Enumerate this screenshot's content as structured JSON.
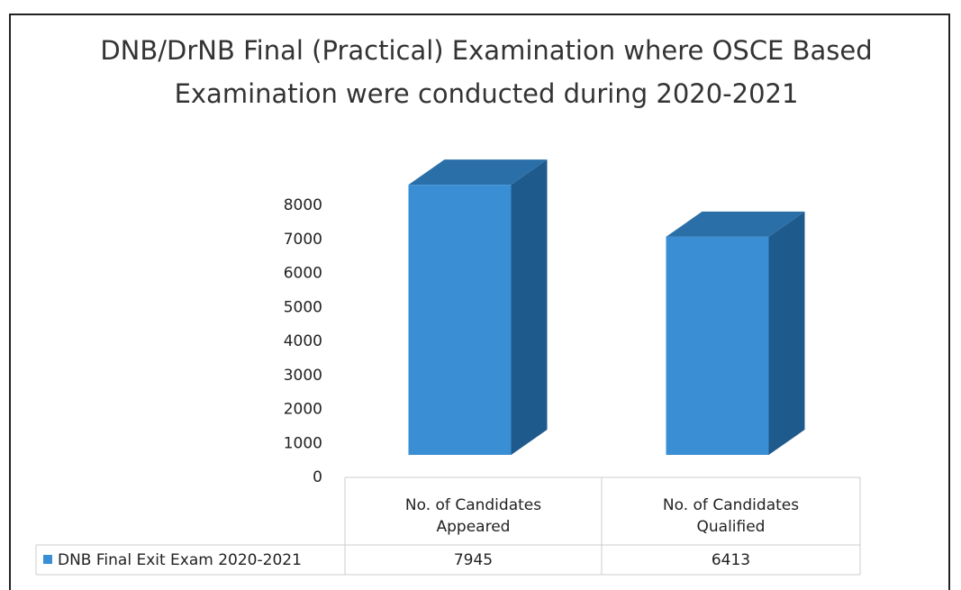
{
  "chart_data": {
    "type": "bar3d",
    "title": "DNB/DrNB Final (Practical) Examination where OSCE Based Examination were conducted during 2020-2021",
    "categories": [
      "No. of Candidates Appeared",
      "No. of Candidates Qualified"
    ],
    "series": [
      {
        "name": "DNB Final Exit Exam 2020-2021",
        "color": "#3a8fd4",
        "values": [
          7945,
          6413
        ]
      }
    ],
    "ylim": [
      0,
      8000
    ],
    "yticks": [
      0,
      1000,
      2000,
      3000,
      4000,
      5000,
      6000,
      7000,
      8000
    ]
  }
}
